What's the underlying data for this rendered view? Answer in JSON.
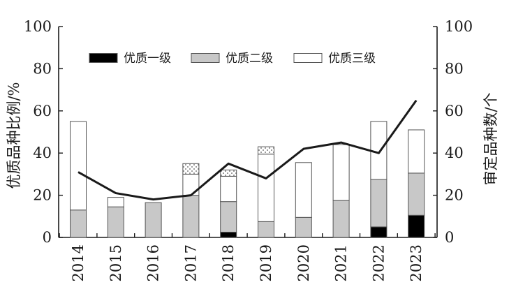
{
  "chart_data": {
    "type": "bar+line",
    "categories": [
      "2014",
      "2015",
      "2016",
      "2017",
      "2018",
      "2019",
      "2020",
      "2021",
      "2022",
      "2023"
    ],
    "series": [
      {
        "name": "优质一级",
        "type": "stacked-bar",
        "axis": "left",
        "color": "#000000",
        "values": [
          0,
          0,
          0,
          0,
          2.5,
          0,
          0,
          0,
          5,
          10.5
        ]
      },
      {
        "name": "优质二级",
        "type": "stacked-bar",
        "axis": "left",
        "color": "#c8c8c8",
        "values": [
          13,
          14.5,
          16.5,
          20,
          14.5,
          7.5,
          9.5,
          17.5,
          22.5,
          20
        ]
      },
      {
        "name": "优质三级",
        "type": "stacked-bar",
        "axis": "left",
        "color": "#ffffff",
        "values": [
          42,
          4.5,
          0,
          10,
          12,
          32,
          26,
          26.5,
          27.5,
          20.5
        ]
      },
      {
        "type": "stacked-bar",
        "axis": "left",
        "pattern": "dotted",
        "values": [
          0,
          0,
          0,
          5,
          3,
          3.5,
          0,
          0,
          0,
          0
        ]
      },
      {
        "type": "line",
        "axis": "right",
        "color": "#1a1a1a",
        "values": [
          31,
          21,
          18,
          20,
          35,
          28,
          42,
          45,
          40,
          65
        ]
      }
    ],
    "ylabel": "优质品种比例/%",
    "y2label": "审定品种数/个",
    "ylim": [
      0,
      100
    ],
    "y2lim": [
      0,
      100
    ],
    "yticks": [
      0,
      20,
      40,
      60,
      80,
      100
    ],
    "y2ticks": [
      0,
      20,
      40,
      60,
      80,
      100
    ],
    "grid": false,
    "legend_position": "top-left"
  }
}
